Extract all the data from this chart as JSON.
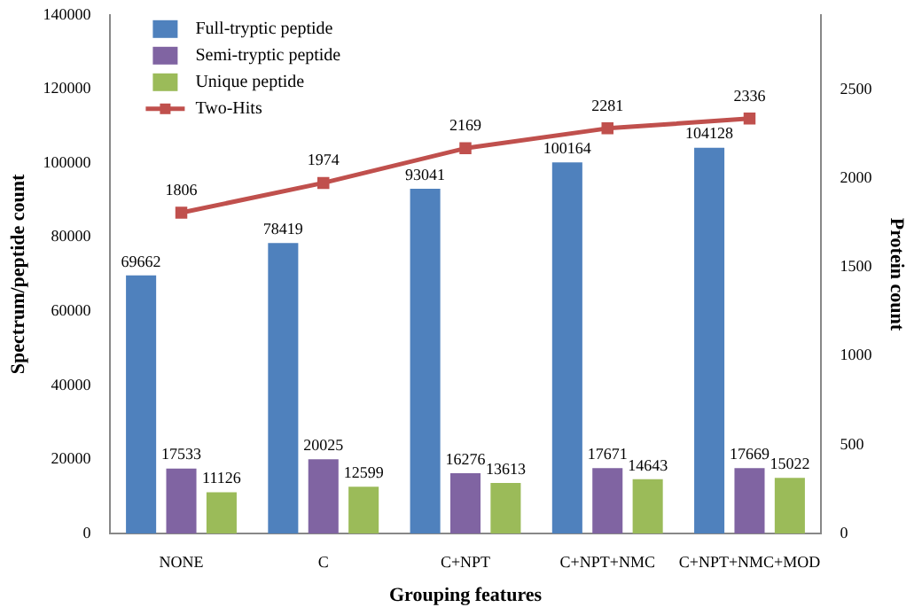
{
  "chart_data": {
    "type": "bar",
    "xlabel": "Grouping features",
    "ylabel": "Spectrum/peptide count",
    "y2label": "Protein count",
    "categories": [
      "NONE",
      "C",
      "C+NPT",
      "C+NPT+NMC",
      "C+NPT+NMC+MOD"
    ],
    "series": [
      {
        "name": "Full-tryptic peptide",
        "color": "#4f81bd",
        "values": [
          69662,
          78419,
          93041,
          100164,
          104128
        ]
      },
      {
        "name": "Semi-tryptic peptide",
        "color": "#8064a2",
        "values": [
          17533,
          20025,
          16276,
          17671,
          17669
        ]
      },
      {
        "name": "Unique peptide",
        "color": "#9bbb59",
        "values": [
          11126,
          12599,
          13613,
          14643,
          15022
        ]
      },
      {
        "name": "Two-Hits",
        "type": "line",
        "axis": "y2",
        "color": "#c0504d",
        "marker": "square",
        "values": [
          1806,
          1974,
          2169,
          2281,
          2336
        ]
      }
    ],
    "ylim": [
      0,
      140000
    ],
    "yticks": [
      0,
      20000,
      40000,
      60000,
      80000,
      100000,
      120000,
      140000
    ],
    "y2lim": [
      0,
      2920
    ],
    "y2ticks": [
      0,
      500,
      1000,
      1500,
      2000,
      2500
    ],
    "grid": false,
    "legend": "top left",
    "data_labels": true
  }
}
